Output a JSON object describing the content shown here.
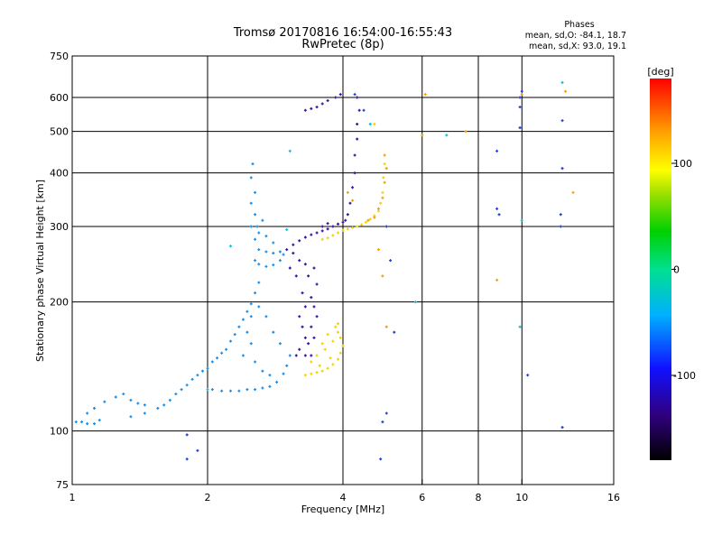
{
  "chart_data": {
    "type": "scatter",
    "title": "Tromsø 20170816 16:54:00-16:55:43",
    "subtitle": "RwPretec (8p)",
    "xlabel": "Frequency [MHz]",
    "ylabel": "Stationary phase Virtual Height [km]",
    "x_scale": "log",
    "y_scale": "log",
    "xlim": [
      1,
      16
    ],
    "ylim": [
      75,
      750
    ],
    "x_ticks": [
      1,
      2,
      4,
      6,
      8,
      10,
      16
    ],
    "y_ticks": [
      75,
      100,
      200,
      300,
      400,
      500,
      600,
      750
    ],
    "grid": true,
    "stats": {
      "heading": "Phases",
      "line1": "mean, sd,O: -84.1, 18.7",
      "line2": "mean, sd,X:  93.0, 19.1"
    },
    "colorbar": {
      "label": "[deg]",
      "range": [
        -180,
        180
      ],
      "ticks": [
        -100,
        0,
        100
      ],
      "colormap": "rainbow"
    },
    "colors": {
      "o_mode": "#1f3fd8",
      "o_mode_light": "#1a8ee6",
      "purple": "#3a10a0",
      "x_mode": "#f2d200",
      "x_mode_orange": "#f5a000"
    },
    "series": [
      {
        "points": [
          [
            1.02,
            105
          ],
          [
            1.05,
            105
          ],
          [
            1.08,
            104
          ],
          [
            1.12,
            104
          ],
          [
            1.15,
            106
          ],
          [
            1.08,
            110
          ],
          [
            1.12,
            113
          ],
          [
            1.18,
            117
          ],
          [
            1.25,
            120
          ],
          [
            1.3,
            122
          ],
          [
            1.35,
            118
          ],
          [
            1.4,
            116
          ],
          [
            1.45,
            115
          ],
          [
            1.35,
            108
          ],
          [
            1.45,
            110
          ],
          [
            1.55,
            113
          ],
          [
            1.6,
            115
          ],
          [
            1.65,
            118
          ],
          [
            1.7,
            122
          ],
          [
            1.75,
            125
          ],
          [
            1.8,
            128
          ],
          [
            1.85,
            132
          ],
          [
            1.9,
            135
          ],
          [
            1.95,
            138
          ],
          [
            2.0,
            140
          ],
          [
            2.05,
            145
          ],
          [
            2.1,
            148
          ],
          [
            2.15,
            152
          ],
          [
            2.2,
            155
          ],
          [
            2.25,
            162
          ],
          [
            2.3,
            168
          ],
          [
            2.35,
            175
          ],
          [
            2.4,
            182
          ],
          [
            2.45,
            190
          ],
          [
            2.5,
            198
          ],
          [
            2.55,
            210
          ],
          [
            2.6,
            222
          ],
          [
            2.05,
            125
          ],
          [
            2.15,
            124
          ],
          [
            2.25,
            124
          ],
          [
            2.35,
            124
          ],
          [
            2.45,
            125
          ],
          [
            2.55,
            125
          ],
          [
            2.65,
            126
          ],
          [
            2.75,
            127
          ],
          [
            2.85,
            130
          ],
          [
            2.95,
            136
          ],
          [
            3.0,
            142
          ],
          [
            3.05,
            150
          ],
          [
            2.9,
            160
          ],
          [
            2.8,
            170
          ],
          [
            2.7,
            185
          ],
          [
            2.6,
            195
          ],
          [
            2.5,
            160
          ],
          [
            2.55,
            145
          ],
          [
            2.65,
            138
          ],
          [
            2.75,
            135
          ],
          [
            2.4,
            150
          ],
          [
            2.45,
            170
          ],
          [
            2.5,
            185
          ],
          [
            2.55,
            250
          ],
          [
            2.6,
            245
          ],
          [
            2.7,
            242
          ],
          [
            2.8,
            244
          ],
          [
            2.9,
            250
          ],
          [
            2.95,
            258
          ],
          [
            2.6,
            265
          ],
          [
            2.7,
            262
          ],
          [
            2.8,
            260
          ],
          [
            2.9,
            262
          ],
          [
            2.55,
            280
          ],
          [
            2.6,
            290
          ],
          [
            2.7,
            285
          ],
          [
            2.8,
            275
          ],
          [
            2.5,
            300
          ],
          [
            2.55,
            320
          ],
          [
            2.5,
            340
          ],
          [
            2.55,
            360
          ],
          [
            2.5,
            390
          ],
          [
            2.52,
            420
          ],
          [
            2.58,
            300
          ],
          [
            2.65,
            310
          ]
        ],
        "color": "#1a8ee6"
      },
      {
        "points": [
          [
            3.0,
            265
          ],
          [
            3.1,
            272
          ],
          [
            3.2,
            278
          ],
          [
            3.3,
            283
          ],
          [
            3.4,
            287
          ],
          [
            3.5,
            290
          ],
          [
            3.6,
            293
          ],
          [
            3.7,
            296
          ],
          [
            3.8,
            300
          ],
          [
            3.9,
            304
          ],
          [
            4.0,
            307
          ],
          [
            4.05,
            310
          ],
          [
            4.1,
            320
          ],
          [
            4.15,
            340
          ],
          [
            4.2,
            370
          ],
          [
            4.25,
            400
          ],
          [
            4.25,
            440
          ],
          [
            4.3,
            480
          ],
          [
            4.3,
            520
          ],
          [
            4.35,
            560
          ],
          [
            4.3,
            600
          ],
          [
            3.95,
            610
          ],
          [
            3.85,
            600
          ],
          [
            3.7,
            590
          ],
          [
            3.6,
            580
          ],
          [
            3.5,
            570
          ],
          [
            3.4,
            565
          ],
          [
            3.3,
            560
          ],
          [
            3.1,
            260
          ],
          [
            3.2,
            250
          ],
          [
            3.3,
            245
          ],
          [
            3.05,
            240
          ],
          [
            3.15,
            230
          ],
          [
            3.25,
            210
          ],
          [
            3.3,
            195
          ],
          [
            3.2,
            185
          ],
          [
            3.25,
            175
          ],
          [
            3.3,
            165
          ],
          [
            3.2,
            155
          ],
          [
            3.15,
            150
          ],
          [
            3.3,
            150
          ],
          [
            3.4,
            150
          ],
          [
            3.35,
            160
          ],
          [
            3.45,
            165
          ],
          [
            3.4,
            175
          ],
          [
            3.5,
            185
          ],
          [
            3.45,
            195
          ],
          [
            3.4,
            205
          ],
          [
            3.5,
            220
          ],
          [
            3.35,
            230
          ],
          [
            3.45,
            240
          ],
          [
            3.6,
            300
          ],
          [
            3.7,
            305
          ]
        ],
        "color": "#3a10a0"
      },
      {
        "points": [
          [
            3.6,
            280
          ],
          [
            3.7,
            282
          ],
          [
            3.8,
            286
          ],
          [
            3.9,
            290
          ],
          [
            4.0,
            294
          ],
          [
            4.1,
            296
          ],
          [
            4.2,
            298
          ],
          [
            4.3,
            300
          ],
          [
            4.4,
            303
          ],
          [
            4.5,
            307
          ],
          [
            4.6,
            312
          ],
          [
            4.7,
            318
          ],
          [
            4.8,
            326
          ],
          [
            4.85,
            340
          ],
          [
            4.9,
            360
          ],
          [
            4.92,
            390
          ],
          [
            4.95,
            420
          ],
          [
            4.7,
            520
          ],
          [
            3.3,
            135
          ],
          [
            3.4,
            136
          ],
          [
            3.5,
            137
          ],
          [
            3.6,
            138
          ],
          [
            3.7,
            140
          ],
          [
            3.8,
            143
          ],
          [
            3.9,
            147
          ],
          [
            3.95,
            152
          ],
          [
            4.0,
            158
          ],
          [
            3.95,
            165
          ],
          [
            3.9,
            170
          ],
          [
            3.85,
            175
          ],
          [
            3.7,
            168
          ],
          [
            3.6,
            160
          ],
          [
            3.5,
            150
          ],
          [
            3.4,
            145
          ],
          [
            3.55,
            142
          ],
          [
            3.75,
            148
          ],
          [
            3.65,
            155
          ],
          [
            3.8,
            162
          ],
          [
            3.9,
            178
          ]
        ],
        "color": "#f2d200"
      },
      {
        "points": [
          [
            4.55,
            310
          ],
          [
            4.7,
            315
          ],
          [
            4.8,
            330
          ],
          [
            4.9,
            350
          ],
          [
            4.95,
            380
          ],
          [
            5.0,
            410
          ],
          [
            4.95,
            440
          ],
          [
            6.1,
            610
          ],
          [
            6.0,
            490
          ],
          [
            7.5,
            500
          ],
          [
            4.2,
            345
          ],
          [
            4.1,
            360
          ],
          [
            8.8,
            225
          ],
          [
            10.0,
            610
          ],
          [
            12.5,
            620
          ],
          [
            13.0,
            360
          ],
          [
            4.8,
            265
          ],
          [
            4.9,
            230
          ],
          [
            5.0,
            175
          ]
        ],
        "color": "#f5a000"
      },
      {
        "points": [
          [
            4.25,
            610
          ],
          [
            4.45,
            560
          ],
          [
            5.0,
            300
          ],
          [
            5.1,
            250
          ],
          [
            5.0,
            110
          ],
          [
            4.9,
            105
          ],
          [
            5.2,
            170
          ],
          [
            8.8,
            450
          ],
          [
            8.8,
            330
          ],
          [
            8.9,
            320
          ],
          [
            9.9,
            600
          ],
          [
            9.9,
            570
          ],
          [
            10.0,
            620
          ],
          [
            12.2,
            320
          ],
          [
            12.2,
            300
          ],
          [
            12.3,
            530
          ],
          [
            12.3,
            410
          ],
          [
            10.3,
            135
          ],
          [
            12.3,
            102
          ],
          [
            1.8,
            98
          ],
          [
            1.8,
            86
          ],
          [
            4.85,
            86
          ],
          [
            9.9,
            510
          ],
          [
            1.9,
            90
          ]
        ],
        "color": "#1f3fd8"
      },
      {
        "points": [
          [
            4.6,
            520
          ],
          [
            5.8,
            200
          ],
          [
            6.8,
            490
          ],
          [
            12.3,
            650
          ],
          [
            10.0,
            310
          ],
          [
            9.9,
            175
          ],
          [
            2.25,
            270
          ],
          [
            2.0,
            125
          ],
          [
            3.0,
            295
          ],
          [
            3.05,
            450
          ]
        ],
        "color": "#12c0d0"
      }
    ]
  }
}
